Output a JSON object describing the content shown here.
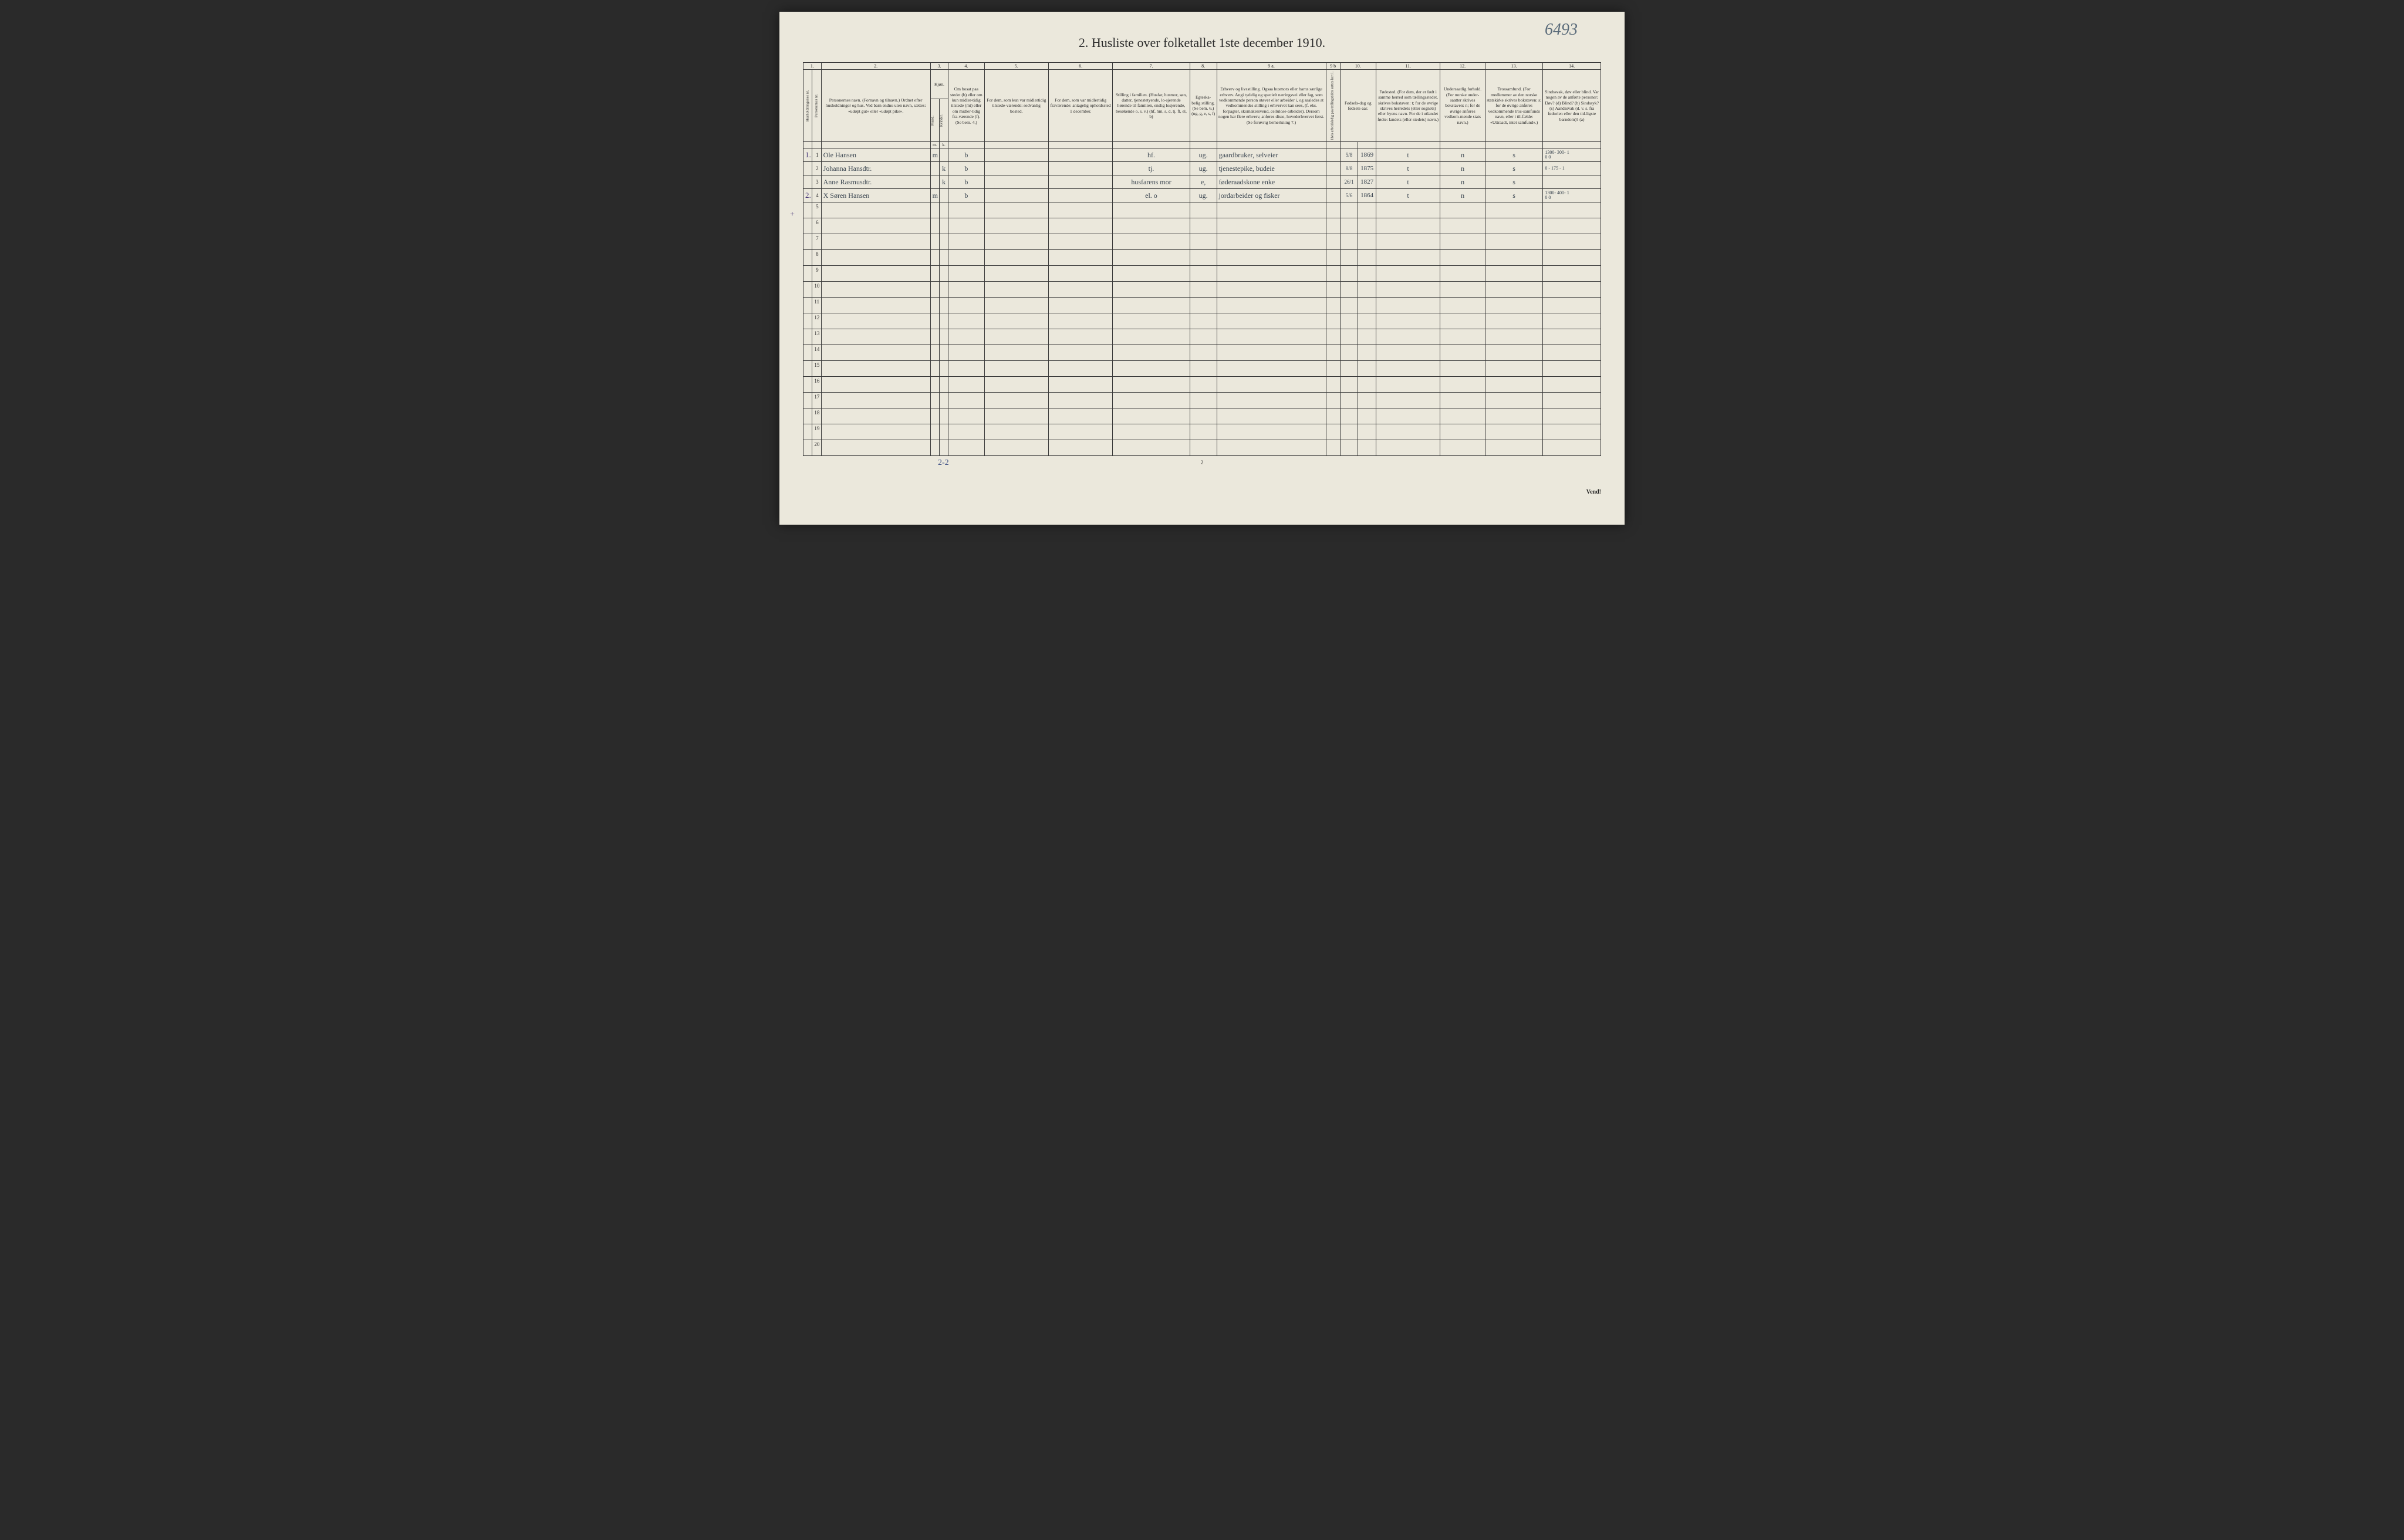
{
  "title": "2.  Husliste over folketallet 1ste december 1910.",
  "handwritten_page_number": "6493",
  "footer_handwritten": "2-2",
  "footer_printed_page": "2",
  "vend": "Vend!",
  "left_cross_mark": "+",
  "colors": {
    "paper": "#ebe8dc",
    "ink_print": "#2a2a2a",
    "ink_hand": "#3a4550",
    "ink_blue": "#4a3a7a",
    "border": "#3a3a3a"
  },
  "column_numbers": [
    "1.",
    "2.",
    "3.",
    "4.",
    "5.",
    "6.",
    "7.",
    "8.",
    "9 a.",
    "9 b",
    "10.",
    "11.",
    "12.",
    "13.",
    "14."
  ],
  "headers": {
    "hus": "Husholdningenes nr.",
    "pers": "Personernes nr.",
    "name": "Personernes navn.\n(Fornavn og tilnavn.)\nOrdnet efter husholdninger og hus.\nVed barn endnu uten navn, sættes: «udøpt gut» eller «udøpt pike».",
    "sex": "Kjøn.",
    "sex_m": "Mænd.",
    "sex_k": "Kvinder.",
    "sex_sub_m": "m.",
    "sex_sub_k": "k.",
    "bosat": "Om bosat paa stedet (b) eller om kun midler-tidig tilstede (mt) eller om midler-tidig fra-værende (f).\n(Se bem. 4.)",
    "midl": "For dem, som kun var midlertidig tilstede-værende:\nsedvanlig bosted.",
    "frav": "For dem, som var midlertidig fraværende:\nantagelig opholdssted 1 december.",
    "still": "Stilling i familien.\n(Husfar, husmor, søn, datter, tjenestetyende, lo-sjerende hørende til familien, enslig losjerende, besøkende o. s. v.)\n(hf, hm, s, d, tj, fl, el, b)",
    "egte": "Egteska-belig stilling.\n(Se bem. 6.)\n(ug, g, e, s, f)",
    "erhv": "Erhverv og livsstilling.\nOgsaa husmors eller barns særlige erhverv.\nAngi tydelig og specielt næringsvei eller fag, som vedkommende person utøver eller arbeider i, og saaledes at vedkommendes stilling i erhvervet kan sees, (f. eks. forpagter, skomakersvend, cellulose-arbeider). Dersom nogen har flere erhverv, anføres disse, hovederhvervet først.\n(Se forøvrig bemerkning 7.)",
    "hvis": "Hvis arbeidsledig paa tællingstiden sættes her: l.",
    "fdag": "Fødsels-dag og fødsels-aar.",
    "fsted": "Fødested.\n(For dem, der er født i samme herred som tællingsstedet, skrives bokstaven: t; for de øvrige skrives herredets (eller sognets) eller byens navn.\nFor de i utlandet fødte: landets (eller stedets) navn.)",
    "under": "Undersaatlig forhold.\n(For norske under-saatter skrives bokstaven: n; for de øvrige anføres vedkom-mende stats navn.)",
    "tros": "Trossamfund.\n(For medlemmer av den norske statskirke skrives bokstaven: s; for de øvrige anføres vedkommende tros-samfunds navn, eller i til-fælde: «Uttraadt, intet samfund».)",
    "sind": "Sindssvak, døv eller blind.\nVar nogen av de anførte personer:\nDøv?    (d)\nBlind?    (b)\nSindssyk?  (s)\nAandssvak (d. v. s. fra fødselen eller den tid-ligste barndom)?  (a)"
  },
  "rows": [
    {
      "household": "1.",
      "person": "1",
      "name": "Ole Hansen",
      "sex_m": "m",
      "sex_k": "",
      "bosat": "b",
      "midl": "",
      "frav": "",
      "still": "hf.",
      "egte": "ug.",
      "erhv": "gaardbruker, selveier",
      "hvis": "",
      "fdag": "5/8",
      "faar": "1869",
      "fsted": "t",
      "under": "n",
      "tros": "s",
      "sind": "1300- 300-  1\n0    0"
    },
    {
      "household": "",
      "person": "2",
      "name": "Johanna Hansdtr.",
      "sex_m": "",
      "sex_k": "k",
      "bosat": "b",
      "midl": "",
      "frav": "",
      "still": "tj.",
      "egte": "ug.",
      "erhv": "tjenestepike, budeie",
      "hvis": "",
      "fdag": "8/8",
      "faar": "1875",
      "fsted": "t",
      "under": "n",
      "tros": "s",
      "sind": "0 - 175 - 1"
    },
    {
      "household": "",
      "person": "3",
      "name": "Anne Rasmusdtr.",
      "sex_m": "",
      "sex_k": "k",
      "bosat": "b",
      "midl": "",
      "frav": "",
      "still": "husfarens mor",
      "egte": "e,",
      "erhv": "føderaadskone enke",
      "hvis": "",
      "fdag": "26/1",
      "faar": "1827",
      "fsted": "t",
      "under": "n",
      "tros": "s",
      "sind": ""
    },
    {
      "household": "2.",
      "person": "4",
      "name": "X Søren Hansen",
      "sex_m": "m",
      "sex_k": "",
      "bosat": "b",
      "midl": "",
      "frav": "",
      "still": "el.    o",
      "egte": "ug.",
      "erhv": "jordarbeider og fisker",
      "hvis": "",
      "fdag": "5/6",
      "faar": "1864",
      "fsted": "t",
      "under": "n",
      "tros": "s",
      "sind": "1300- 400-  1\n0   0"
    }
  ],
  "empty_row_numbers": [
    "5",
    "6",
    "7",
    "8",
    "9",
    "10",
    "11",
    "12",
    "13",
    "14",
    "15",
    "16",
    "17",
    "18",
    "19",
    "20"
  ]
}
